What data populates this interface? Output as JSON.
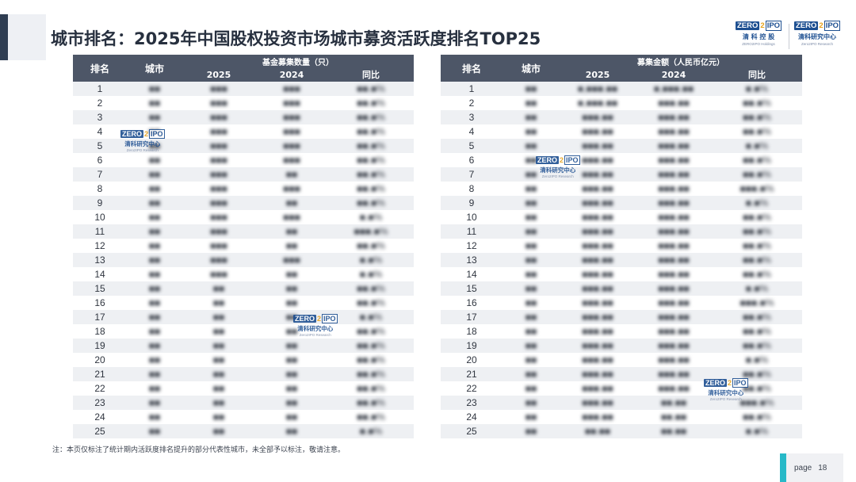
{
  "title": "城市排名：2025年中国股权投资市场城市募资活跃度排名TOP25",
  "logos": {
    "holdings": {
      "mark_left": "ZERO",
      "mark_right": "IPO",
      "cn": "清 科 控 股",
      "en": "ZERO2IPO Holdings"
    },
    "research": {
      "mark_left": "ZERO",
      "mark_right": "IPO",
      "cn": "清科研究中心",
      "en": "Zero2IPO Research"
    }
  },
  "left_table": {
    "col_rank": "排名",
    "col_city": "城市",
    "group_label": "基金募集数量（只）",
    "col_2025": "2025",
    "col_2024": "2024",
    "col_yoy": "同比",
    "rows": [
      {
        "rank": "1",
        "city": "■■",
        "v2025": "■■■",
        "v2024": "■■■",
        "yoy": "■■.■%"
      },
      {
        "rank": "2",
        "city": "■■",
        "v2025": "■■■",
        "v2024": "■■■",
        "yoy": "■■.■%"
      },
      {
        "rank": "3",
        "city": "■■",
        "v2025": "■■■",
        "v2024": "■■■",
        "yoy": "■■.■%"
      },
      {
        "rank": "4",
        "city": "■■",
        "v2025": "■■■",
        "v2024": "■■■",
        "yoy": "■■.■%"
      },
      {
        "rank": "5",
        "city": "■■",
        "v2025": "■■■",
        "v2024": "■■■",
        "yoy": "■■.■%"
      },
      {
        "rank": "6",
        "city": "■■",
        "v2025": "■■■",
        "v2024": "■■■",
        "yoy": "■■.■%"
      },
      {
        "rank": "7",
        "city": "■■",
        "v2025": "■■■",
        "v2024": "■■",
        "yoy": "■■.■%"
      },
      {
        "rank": "8",
        "city": "■■",
        "v2025": "■■■",
        "v2024": "■■■",
        "yoy": "■■.■%"
      },
      {
        "rank": "9",
        "city": "■■",
        "v2025": "■■■",
        "v2024": "■■",
        "yoy": "■■.■%"
      },
      {
        "rank": "10",
        "city": "■■",
        "v2025": "■■■",
        "v2024": "■■■",
        "yoy": "■.■%"
      },
      {
        "rank": "11",
        "city": "■■",
        "v2025": "■■■",
        "v2024": "■■",
        "yoy": "■■■.■%"
      },
      {
        "rank": "12",
        "city": "■■",
        "v2025": "■■■",
        "v2024": "■■",
        "yoy": "■■.■%"
      },
      {
        "rank": "13",
        "city": "■■",
        "v2025": "■■■",
        "v2024": "■■■",
        "yoy": "■.■%"
      },
      {
        "rank": "14",
        "city": "■■",
        "v2025": "■■■",
        "v2024": "■■",
        "yoy": "■.■%"
      },
      {
        "rank": "15",
        "city": "■■",
        "v2025": "■■",
        "v2024": "■■",
        "yoy": "■■.■%"
      },
      {
        "rank": "16",
        "city": "■■",
        "v2025": "■■",
        "v2024": "■■",
        "yoy": "■■.■%"
      },
      {
        "rank": "17",
        "city": "■■",
        "v2025": "■■",
        "v2024": "■■",
        "yoy": "■.■%"
      },
      {
        "rank": "18",
        "city": "■■",
        "v2025": "■■",
        "v2024": "■■",
        "yoy": "■■.■%"
      },
      {
        "rank": "19",
        "city": "■■",
        "v2025": "■■",
        "v2024": "■■",
        "yoy": "■■.■%"
      },
      {
        "rank": "20",
        "city": "■■",
        "v2025": "■■",
        "v2024": "■■",
        "yoy": "■■.■%"
      },
      {
        "rank": "21",
        "city": "■■",
        "v2025": "■■",
        "v2024": "■■",
        "yoy": "■■.■%"
      },
      {
        "rank": "22",
        "city": "■■",
        "v2025": "■■",
        "v2024": "■■",
        "yoy": "■■.■%"
      },
      {
        "rank": "23",
        "city": "■■",
        "v2025": "■■",
        "v2024": "■■",
        "yoy": "■■.■%"
      },
      {
        "rank": "24",
        "city": "■■",
        "v2025": "■■",
        "v2024": "■■",
        "yoy": "■■.■%"
      },
      {
        "rank": "25",
        "city": "■■",
        "v2025": "■■",
        "v2024": "■■",
        "yoy": "■.■%"
      }
    ]
  },
  "right_table": {
    "col_rank": "排名",
    "col_city": "城市",
    "group_label": "募集金额（人民币亿元）",
    "col_2025": "2025",
    "col_2024": "2024",
    "col_yoy": "同比",
    "rows": [
      {
        "rank": "1",
        "city": "■■",
        "v2025": "■,■■■.■■",
        "v2024": "■,■■■.■■",
        "yoy": "■.■%"
      },
      {
        "rank": "2",
        "city": "■■",
        "v2025": "■,■■■.■■",
        "v2024": "■■■.■■",
        "yoy": "■■.■%"
      },
      {
        "rank": "3",
        "city": "■■",
        "v2025": "■■■.■■",
        "v2024": "■■■.■■",
        "yoy": "■■.■%"
      },
      {
        "rank": "4",
        "city": "■■",
        "v2025": "■■■.■■",
        "v2024": "■■■.■■",
        "yoy": "■■.■%"
      },
      {
        "rank": "5",
        "city": "■■",
        "v2025": "■■■.■■",
        "v2024": "■■■.■■",
        "yoy": "■.■%"
      },
      {
        "rank": "6",
        "city": "■■",
        "v2025": "■■■.■■",
        "v2024": "■■■.■■",
        "yoy": "■■.■%"
      },
      {
        "rank": "7",
        "city": "■■",
        "v2025": "■■■.■■",
        "v2024": "■■■.■■",
        "yoy": "■■.■%"
      },
      {
        "rank": "8",
        "city": "■■",
        "v2025": "■■■.■■",
        "v2024": "■■■.■■",
        "yoy": "■■■.■%"
      },
      {
        "rank": "9",
        "city": "■■",
        "v2025": "■■■.■■",
        "v2024": "■■■.■■",
        "yoy": "■.■%"
      },
      {
        "rank": "10",
        "city": "■■",
        "v2025": "■■■.■■",
        "v2024": "■■■.■■",
        "yoy": "■■.■%"
      },
      {
        "rank": "11",
        "city": "■■",
        "v2025": "■■■.■■",
        "v2024": "■■■.■■",
        "yoy": "■■.■%"
      },
      {
        "rank": "12",
        "city": "■■",
        "v2025": "■■■.■■",
        "v2024": "■■■.■■",
        "yoy": "■■.■%"
      },
      {
        "rank": "13",
        "city": "■■",
        "v2025": "■■■.■■",
        "v2024": "■■■.■■",
        "yoy": "■■.■%"
      },
      {
        "rank": "14",
        "city": "■■",
        "v2025": "■■■.■■",
        "v2024": "■■■.■■",
        "yoy": "■■.■%"
      },
      {
        "rank": "15",
        "city": "■■",
        "v2025": "■■■.■■",
        "v2024": "■■■.■■",
        "yoy": "■.■%"
      },
      {
        "rank": "16",
        "city": "■■",
        "v2025": "■■■.■■",
        "v2024": "■■■.■■",
        "yoy": "■■■.■%"
      },
      {
        "rank": "17",
        "city": "■■",
        "v2025": "■■■.■■",
        "v2024": "■■■.■■",
        "yoy": "■■.■%"
      },
      {
        "rank": "18",
        "city": "■■",
        "v2025": "■■■.■■",
        "v2024": "■■■.■■",
        "yoy": "■■.■%"
      },
      {
        "rank": "19",
        "city": "■■",
        "v2025": "■■■.■■",
        "v2024": "■■■.■■",
        "yoy": "■■.■%"
      },
      {
        "rank": "20",
        "city": "■■",
        "v2025": "■■■.■■",
        "v2024": "■■■.■■",
        "yoy": "■.■%"
      },
      {
        "rank": "21",
        "city": "■■",
        "v2025": "■■■.■■",
        "v2024": "■■■.■■",
        "yoy": "■■.■%"
      },
      {
        "rank": "22",
        "city": "■■",
        "v2025": "■■■.■■",
        "v2024": "■■■.■■",
        "yoy": "■■.■%"
      },
      {
        "rank": "23",
        "city": "■■",
        "v2025": "■■■.■■",
        "v2024": "■■.■■",
        "yoy": "■■■.■%"
      },
      {
        "rank": "24",
        "city": "■■",
        "v2025": "■■■.■■",
        "v2024": "■■.■■",
        "yoy": "■■.■%"
      },
      {
        "rank": "25",
        "city": "■■",
        "v2025": "■■.■■",
        "v2024": "■■.■■",
        "yoy": "■.■%"
      }
    ]
  },
  "note": "注：本页仅标注了统计期内活跃度排名提升的部分代表性城市，未全部予以标注，敬请注意。",
  "page": {
    "label": "page",
    "number": "18"
  },
  "colors": {
    "header_bg": "#4d5667",
    "stripe": "#eef0f3",
    "accent_bar": "#27b9c8",
    "brand_blue": "#1d4f91",
    "brand_orange": "#e8a21a"
  }
}
